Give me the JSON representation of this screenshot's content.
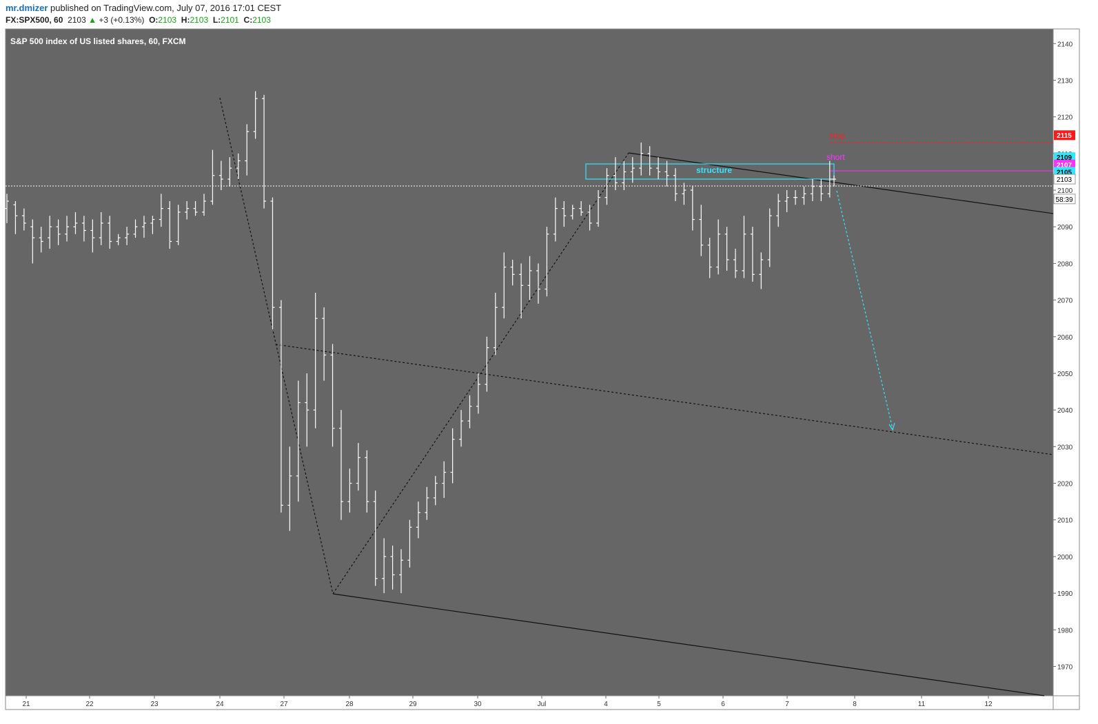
{
  "header": {
    "author": "mr.dmizer",
    "published": "published on TradingView.com, July 07, 2016 17:01 CEST",
    "symbol": "FX:SPX500, 60",
    "last": "2103",
    "change_icon": "triangle-up-icon",
    "change": "+3 (+0.13%)",
    "o_label": "O:",
    "open": "2103",
    "h_label": "H:",
    "high": "2103",
    "l_label": "L:",
    "low": "2101",
    "c_label": "C:",
    "close": "2103"
  },
  "chart_data": {
    "type": "bar",
    "title": "S&P 500 index of US listed shares, 60, FXCM",
    "ylim": [
      1962,
      2144
    ],
    "y_ticks": [
      "1970",
      "1980",
      "1990",
      "2000",
      "2010",
      "2020",
      "2030",
      "2040",
      "2050",
      "2060",
      "2070",
      "2080",
      "2090",
      "2100",
      "2110",
      "2120",
      "2130",
      "2140"
    ],
    "x_ticks": [
      "21",
      "22",
      "23",
      "24",
      "27",
      "28",
      "29",
      "30",
      "Jul",
      "4",
      "5",
      "6",
      "7",
      "8",
      "11",
      "12"
    ],
    "price_labels": [
      {
        "text": "2115",
        "value": 2115,
        "color": "#ff1a1a"
      },
      {
        "text": "2109",
        "value": 2109,
        "color": "#33e6ff"
      },
      {
        "text": "2107",
        "value": 2107,
        "color": "#ff33ff"
      },
      {
        "text": "2105",
        "value": 2105,
        "color": "#33e6ff"
      },
      {
        "text": "2103",
        "value": 2103,
        "color": "#ffffff"
      },
      {
        "text": "58:39",
        "value": 2097.6,
        "color": "#ffffff"
      }
    ],
    "annotations": [
      {
        "text": "stop",
        "color": "#ff2020"
      },
      {
        "text": "short",
        "color": "#ff33ff"
      },
      {
        "text": "structure",
        "color": "#33e6ff"
      }
    ],
    "series": [
      {
        "x": 0,
        "o": 2095,
        "h": 2099,
        "l": 2091,
        "c": 2097
      },
      {
        "x": 2,
        "o": 2096,
        "h": 2097,
        "l": 2088,
        "c": 2093
      },
      {
        "x": 4,
        "o": 2093,
        "h": 2095,
        "l": 2089,
        "c": 2091
      },
      {
        "x": 6,
        "o": 2090,
        "h": 2092,
        "l": 2080,
        "c": 2087
      },
      {
        "x": 8,
        "o": 2087,
        "h": 2090,
        "l": 2083,
        "c": 2086
      },
      {
        "x": 10,
        "o": 2087,
        "h": 2093,
        "l": 2084,
        "c": 2090
      },
      {
        "x": 12,
        "o": 2090,
        "h": 2092,
        "l": 2085,
        "c": 2088
      },
      {
        "x": 14,
        "o": 2088,
        "h": 2093,
        "l": 2086,
        "c": 2090
      },
      {
        "x": 16,
        "o": 2090,
        "h": 2094,
        "l": 2088,
        "c": 2091
      },
      {
        "x": 18,
        "o": 2091,
        "h": 2093,
        "l": 2086,
        "c": 2089
      },
      {
        "x": 20,
        "o": 2089,
        "h": 2092,
        "l": 2083,
        "c": 2087
      },
      {
        "x": 22,
        "o": 2087,
        "h": 2094,
        "l": 2085,
        "c": 2091
      },
      {
        "x": 24,
        "o": 2091,
        "h": 2093,
        "l": 2084,
        "c": 2086
      },
      {
        "x": 26,
        "o": 2086,
        "h": 2088,
        "l": 2085,
        "c": 2087
      },
      {
        "x": 28,
        "o": 2087,
        "h": 2090,
        "l": 2085,
        "c": 2088
      },
      {
        "x": 30,
        "o": 2088,
        "h": 2092,
        "l": 2087,
        "c": 2090
      },
      {
        "x": 32,
        "o": 2090,
        "h": 2093,
        "l": 2087,
        "c": 2091
      },
      {
        "x": 34,
        "o": 2091,
        "h": 2093,
        "l": 2088,
        "c": 2092
      },
      {
        "x": 36,
        "o": 2092,
        "h": 2099,
        "l": 2090,
        "c": 2095
      },
      {
        "x": 38,
        "o": 2095,
        "h": 2097,
        "l": 2084,
        "c": 2086
      },
      {
        "x": 40,
        "o": 2086,
        "h": 2096,
        "l": 2085,
        "c": 2094
      },
      {
        "x": 42,
        "o": 2094,
        "h": 2097,
        "l": 2092,
        "c": 2095
      },
      {
        "x": 44,
        "o": 2095,
        "h": 2097,
        "l": 2093,
        "c": 2094
      },
      {
        "x": 46,
        "o": 2094,
        "h": 2099,
        "l": 2093,
        "c": 2097
      },
      {
        "x": 48,
        "o": 2097,
        "h": 2111,
        "l": 2096,
        "c": 2104
      },
      {
        "x": 50,
        "o": 2104,
        "h": 2108,
        "l": 2100,
        "c": 2103
      },
      {
        "x": 52,
        "o": 2103,
        "h": 2109,
        "l": 2101,
        "c": 2106
      },
      {
        "x": 54,
        "o": 2106,
        "h": 2110,
        "l": 2103,
        "c": 2108
      },
      {
        "x": 56,
        "o": 2108,
        "h": 2118,
        "l": 2104,
        "c": 2116
      },
      {
        "x": 58,
        "o": 2116,
        "h": 2127,
        "l": 2114,
        "c": 2125
      },
      {
        "x": 60,
        "o": 2125,
        "h": 2126,
        "l": 2095,
        "c": 2097
      },
      {
        "x": 62,
        "o": 2097,
        "h": 2098,
        "l": 2062,
        "c": 2068
      },
      {
        "x": 64,
        "o": 2068,
        "h": 2070,
        "l": 2012,
        "c": 2014
      },
      {
        "x": 66,
        "o": 2014,
        "h": 2030,
        "l": 2007,
        "c": 2022
      },
      {
        "x": 68,
        "o": 2022,
        "h": 2048,
        "l": 2015,
        "c": 2042
      },
      {
        "x": 70,
        "o": 2042,
        "h": 2050,
        "l": 2030,
        "c": 2040
      },
      {
        "x": 72,
        "o": 2040,
        "h": 2072,
        "l": 2035,
        "c": 2065
      },
      {
        "x": 74,
        "o": 2065,
        "h": 2068,
        "l": 2048,
        "c": 2055
      },
      {
        "x": 76,
        "o": 2055,
        "h": 2058,
        "l": 2030,
        "c": 2035
      },
      {
        "x": 78,
        "o": 2035,
        "h": 2040,
        "l": 2010,
        "c": 2015
      },
      {
        "x": 80,
        "o": 2015,
        "h": 2024,
        "l": 2012,
        "c": 2020
      },
      {
        "x": 82,
        "o": 2020,
        "h": 2031,
        "l": 2018,
        "c": 2027
      },
      {
        "x": 84,
        "o": 2027,
        "h": 2029,
        "l": 2012,
        "c": 2015
      },
      {
        "x": 86,
        "o": 2015,
        "h": 2018,
        "l": 1992,
        "c": 1994
      },
      {
        "x": 88,
        "o": 1994,
        "h": 2005,
        "l": 1990,
        "c": 2000
      },
      {
        "x": 90,
        "o": 2000,
        "h": 2003,
        "l": 1991,
        "c": 1995
      },
      {
        "x": 92,
        "o": 1995,
        "h": 2002,
        "l": 1990,
        "c": 1999
      },
      {
        "x": 94,
        "o": 1999,
        "h": 2010,
        "l": 1997,
        "c": 2008
      },
      {
        "x": 96,
        "o": 2008,
        "h": 2015,
        "l": 2005,
        "c": 2012
      },
      {
        "x": 98,
        "o": 2012,
        "h": 2019,
        "l": 2010,
        "c": 2016
      },
      {
        "x": 100,
        "o": 2016,
        "h": 2022,
        "l": 2014,
        "c": 2020
      },
      {
        "x": 102,
        "o": 2020,
        "h": 2026,
        "l": 2016,
        "c": 2023
      },
      {
        "x": 104,
        "o": 2023,
        "h": 2035,
        "l": 2020,
        "c": 2032
      },
      {
        "x": 106,
        "o": 2032,
        "h": 2040,
        "l": 2030,
        "c": 2037
      },
      {
        "x": 108,
        "o": 2037,
        "h": 2044,
        "l": 2035,
        "c": 2041
      },
      {
        "x": 110,
        "o": 2041,
        "h": 2050,
        "l": 2039,
        "c": 2047
      },
      {
        "x": 112,
        "o": 2047,
        "h": 2060,
        "l": 2045,
        "c": 2057
      },
      {
        "x": 114,
        "o": 2057,
        "h": 2072,
        "l": 2055,
        "c": 2068
      },
      {
        "x": 116,
        "o": 2068,
        "h": 2083,
        "l": 2065,
        "c": 2079
      },
      {
        "x": 118,
        "o": 2079,
        "h": 2081,
        "l": 2074,
        "c": 2077
      },
      {
        "x": 120,
        "o": 2077,
        "h": 2080,
        "l": 2065,
        "c": 2074
      },
      {
        "x": 122,
        "o": 2074,
        "h": 2082,
        "l": 2070,
        "c": 2078
      },
      {
        "x": 124,
        "o": 2078,
        "h": 2080,
        "l": 2069,
        "c": 2073
      },
      {
        "x": 126,
        "o": 2073,
        "h": 2090,
        "l": 2071,
        "c": 2088
      },
      {
        "x": 128,
        "o": 2088,
        "h": 2098,
        "l": 2086,
        "c": 2095
      },
      {
        "x": 130,
        "o": 2095,
        "h": 2097,
        "l": 2090,
        "c": 2093
      },
      {
        "x": 132,
        "o": 2093,
        "h": 2096,
        "l": 2092,
        "c": 2095
      },
      {
        "x": 134,
        "o": 2095,
        "h": 2097,
        "l": 2093,
        "c": 2094
      },
      {
        "x": 136,
        "o": 2094,
        "h": 2096,
        "l": 2089,
        "c": 2091
      },
      {
        "x": 138,
        "o": 2091,
        "h": 2100,
        "l": 2090,
        "c": 2098
      },
      {
        "x": 140,
        "o": 2098,
        "h": 2106,
        "l": 2096,
        "c": 2104
      },
      {
        "x": 142,
        "o": 2104,
        "h": 2109,
        "l": 2100,
        "c": 2102
      },
      {
        "x": 144,
        "o": 2102,
        "h": 2108,
        "l": 2100,
        "c": 2105
      },
      {
        "x": 146,
        "o": 2105,
        "h": 2109,
        "l": 2102,
        "c": 2106
      },
      {
        "x": 148,
        "o": 2106,
        "h": 2113,
        "l": 2104,
        "c": 2110
      },
      {
        "x": 150,
        "o": 2110,
        "h": 2112,
        "l": 2104,
        "c": 2106
      },
      {
        "x": 152,
        "o": 2106,
        "h": 2109,
        "l": 2103,
        "c": 2105
      },
      {
        "x": 154,
        "o": 2105,
        "h": 2108,
        "l": 2101,
        "c": 2104
      },
      {
        "x": 156,
        "o": 2104,
        "h": 2106,
        "l": 2097,
        "c": 2099
      },
      {
        "x": 158,
        "o": 2099,
        "h": 2102,
        "l": 2096,
        "c": 2100
      },
      {
        "x": 160,
        "o": 2100,
        "h": 2101,
        "l": 2089,
        "c": 2092
      },
      {
        "x": 162,
        "o": 2092,
        "h": 2096,
        "l": 2082,
        "c": 2085
      },
      {
        "x": 164,
        "o": 2085,
        "h": 2087,
        "l": 2076,
        "c": 2079
      },
      {
        "x": 166,
        "o": 2079,
        "h": 2092,
        "l": 2077,
        "c": 2088
      },
      {
        "x": 168,
        "o": 2088,
        "h": 2090,
        "l": 2078,
        "c": 2081
      },
      {
        "x": 170,
        "o": 2081,
        "h": 2084,
        "l": 2076,
        "c": 2078
      },
      {
        "x": 172,
        "o": 2078,
        "h": 2093,
        "l": 2076,
        "c": 2088
      },
      {
        "x": 174,
        "o": 2088,
        "h": 2090,
        "l": 2075,
        "c": 2077
      },
      {
        "x": 176,
        "o": 2077,
        "h": 2083,
        "l": 2073,
        "c": 2081
      },
      {
        "x": 178,
        "o": 2081,
        "h": 2095,
        "l": 2079,
        "c": 2093
      },
      {
        "x": 180,
        "o": 2093,
        "h": 2099,
        "l": 2090,
        "c": 2097
      },
      {
        "x": 182,
        "o": 2097,
        "h": 2100,
        "l": 2094,
        "c": 2098
      },
      {
        "x": 184,
        "o": 2098,
        "h": 2100,
        "l": 2096,
        "c": 2098
      },
      {
        "x": 186,
        "o": 2098,
        "h": 2101,
        "l": 2096,
        "c": 2099
      },
      {
        "x": 188,
        "o": 2099,
        "h": 2103,
        "l": 2097,
        "c": 2101
      },
      {
        "x": 190,
        "o": 2101,
        "h": 2103,
        "l": 2097,
        "c": 2099
      },
      {
        "x": 192,
        "o": 2099,
        "h": 2108,
        "l": 2098,
        "c": 2103
      },
      {
        "x": 193,
        "o": 2103,
        "h": 2104,
        "l": 2101,
        "c": 2103
      }
    ]
  }
}
